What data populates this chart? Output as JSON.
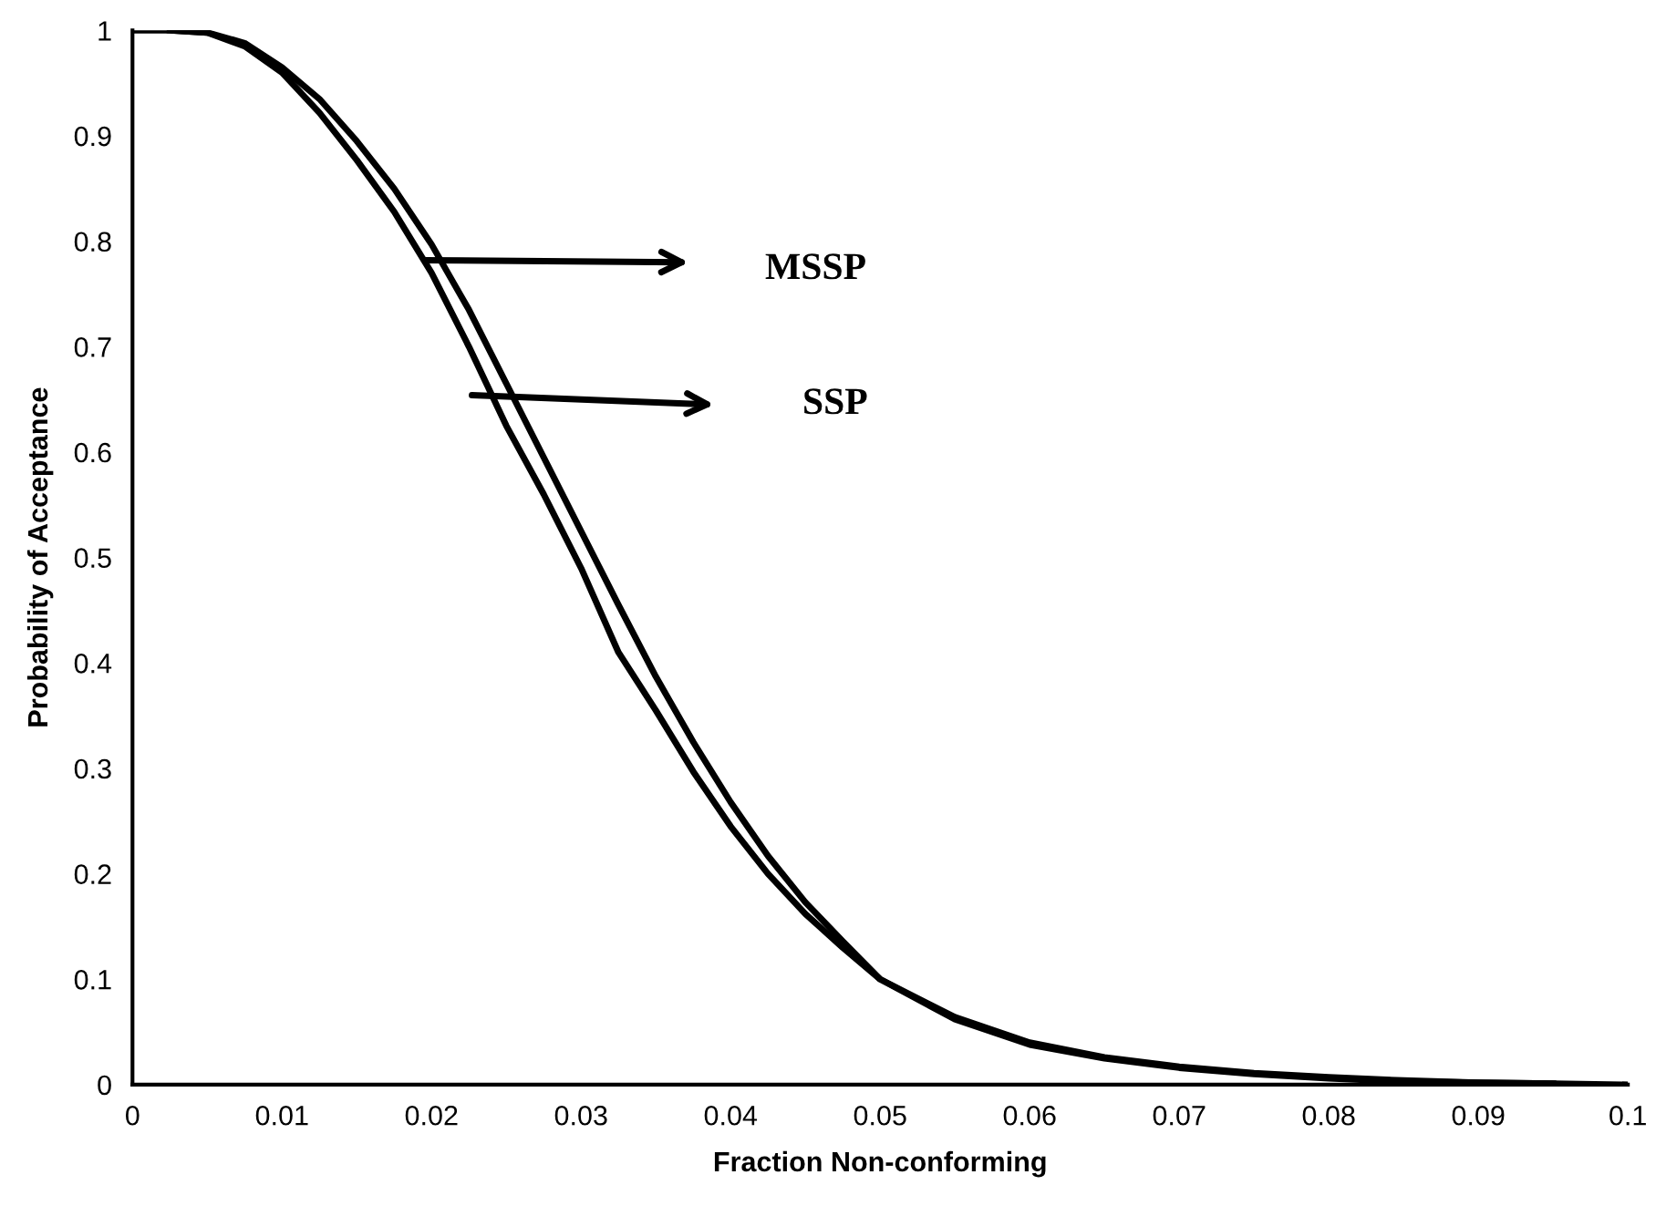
{
  "chart_data": {
    "type": "line",
    "xlabel": "Fraction Non-conforming",
    "ylabel": "Probability of Acceptance",
    "x": [
      0,
      0.0025,
      0.005,
      0.0075,
      0.01,
      0.0125,
      0.015,
      0.0175,
      0.02,
      0.0225,
      0.025,
      0.0275,
      0.03,
      0.0325,
      0.035,
      0.0375,
      0.04,
      0.0425,
      0.045,
      0.0475,
      0.05,
      0.055,
      0.06,
      0.065,
      0.07,
      0.075,
      0.08,
      0.085,
      0.09,
      0.095,
      0.1
    ],
    "series": [
      {
        "color": "#000000",
        "values": [
          null,
          1,
          0.998,
          0.988,
          0.965,
          0.935,
          0.895,
          0.85,
          0.797,
          0.735,
          0.665,
          0.595,
          0.525,
          0.455,
          0.387,
          0.325,
          0.268,
          0.217,
          0.173,
          0.136,
          0.1,
          0.062,
          0.038,
          0.025,
          0.016,
          0.01,
          0.006,
          0.003,
          0.002,
          0.001,
          null
        ]
      },
      {
        "color": "#000000",
        "values": [
          1,
          1,
          0.998,
          0.985,
          0.96,
          0.922,
          0.877,
          0.828,
          0.77,
          0.7,
          0.625,
          0.56,
          0.49,
          0.41,
          0.355,
          0.297,
          0.245,
          0.2,
          0.162,
          0.13,
          0.1,
          0.064,
          0.04,
          0.026,
          0.017,
          0.011,
          0.007,
          0.004,
          0.002,
          0.001,
          0
        ]
      }
    ],
    "annotations": [
      "MSSP",
      "SSP"
    ],
    "xlim": [
      0,
      0.1
    ],
    "xticks": [
      0,
      0.01,
      0.02,
      0.03,
      0.04,
      0.05,
      0.06,
      0.07,
      0.08,
      0.09,
      0.1
    ],
    "ylim": [
      0,
      1
    ],
    "yticks": [
      0,
      0.1,
      0.2,
      0.3,
      0.4,
      0.5,
      0.6,
      0.7,
      0.8,
      0.9,
      1
    ],
    "grid": false,
    "legend": false,
    "marker": "none",
    "line_style": "solid"
  }
}
